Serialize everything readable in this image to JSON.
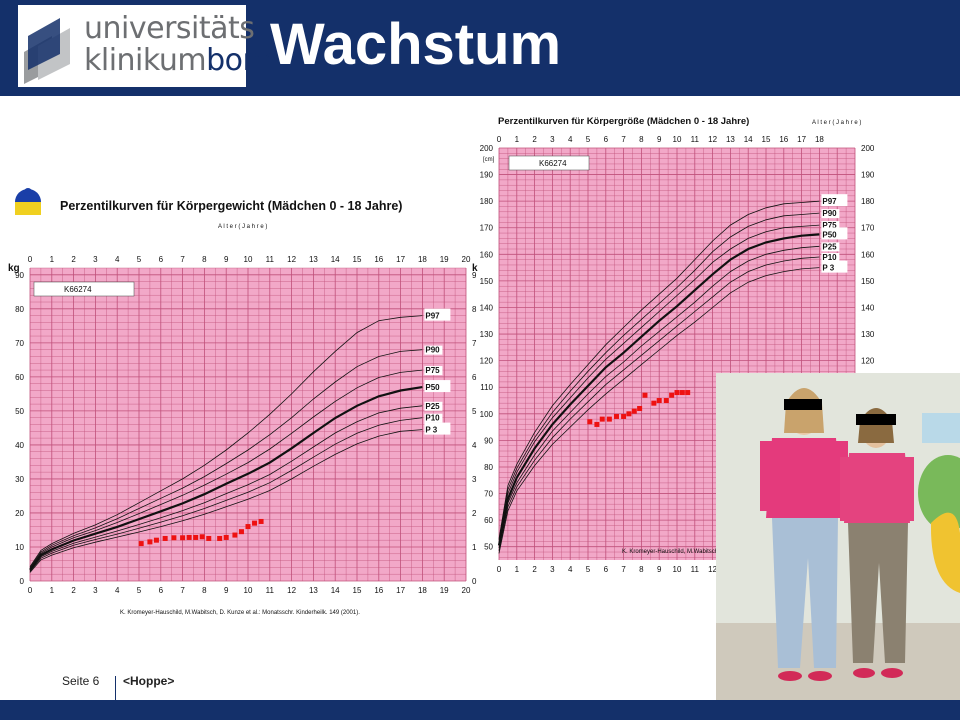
{
  "slide": {
    "title": "Wachstum",
    "page_label": "Seite 6",
    "author": "<Hoppe>",
    "logo": {
      "line1": "universitäts",
      "line2a": "klinikum",
      "line2b": "bonn"
    },
    "colors": {
      "brand": "#14306a",
      "grid_bg": "#f2a8c8",
      "grid_line": "#c0507a",
      "patient": "#ee1111"
    }
  },
  "chart_data": [
    {
      "type": "line",
      "title": "Perzentilkurven für Körpergewicht (Mädchen 0 - 18 Jahre)",
      "xlabel": "A l t e r  ( J a h r e )",
      "ylabel_left": "kg",
      "ylabel_right": "k",
      "patient_id": "K66274",
      "x_ticks": [
        "0",
        "1",
        "2",
        "3",
        "4",
        "5",
        "6",
        "7",
        "8",
        "9",
        "10",
        "11",
        "12",
        "13",
        "14",
        "15",
        "16",
        "17",
        "18",
        "19",
        "20"
      ],
      "y_ticks": [
        "0",
        "10",
        "20",
        "30",
        "40",
        "50",
        "60",
        "70",
        "80",
        "90"
      ],
      "y_ticks_right": [
        "0",
        "1",
        "2",
        "3",
        "4",
        "5",
        "6",
        "7",
        "8",
        "9"
      ],
      "xlim": [
        0,
        20
      ],
      "ylim": [
        0,
        92
      ],
      "citation": "K. Kromeyer-Hauschild, M.Wabitsch, D. Kunze et al.: Monatsschr. Kinderheilk. 149 (2001).",
      "series": [
        {
          "name": "P97",
          "bold": false,
          "x": [
            0,
            0.5,
            1,
            2,
            3,
            4,
            5,
            6,
            7,
            8,
            9,
            10,
            11,
            12,
            13,
            14,
            15,
            16,
            17,
            18
          ],
          "values": [
            4.2,
            9,
            11,
            14,
            16.5,
            19.5,
            23,
            26.5,
            30,
            34,
            38.5,
            43.5,
            49,
            55,
            61.5,
            67.5,
            73,
            76.5,
            77.5,
            78
          ]
        },
        {
          "name": "P90",
          "bold": false,
          "x": [
            0,
            0.5,
            1,
            2,
            3,
            4,
            5,
            6,
            7,
            8,
            9,
            10,
            11,
            12,
            13,
            14,
            15,
            16,
            17,
            18
          ],
          "values": [
            3.9,
            8.5,
            10.5,
            13.3,
            15.6,
            18.3,
            21.3,
            24.3,
            27.3,
            30.7,
            34.5,
            38.5,
            43,
            48,
            53.5,
            58.5,
            63,
            66,
            67.5,
            68
          ]
        },
        {
          "name": "P75",
          "bold": false,
          "x": [
            0,
            0.5,
            1,
            2,
            3,
            4,
            5,
            6,
            7,
            8,
            9,
            10,
            11,
            12,
            13,
            14,
            15,
            16,
            17,
            18
          ],
          "values": [
            3.6,
            8.1,
            10,
            12.7,
            14.8,
            17.2,
            19.8,
            22.5,
            25.2,
            28.2,
            31.4,
            34.8,
            38.8,
            43.4,
            48.2,
            52.8,
            56.8,
            59.8,
            61.3,
            62
          ]
        },
        {
          "name": "P50",
          "bold": true,
          "x": [
            0,
            0.5,
            1,
            2,
            3,
            4,
            5,
            6,
            7,
            8,
            9,
            10,
            11,
            12,
            13,
            14,
            15,
            16,
            17,
            18
          ],
          "values": [
            3.3,
            7.6,
            9.3,
            11.9,
            13.9,
            15.9,
            18.2,
            20.5,
            22.8,
            25.5,
            28.6,
            31.5,
            34.8,
            39,
            43.5,
            47.9,
            51.5,
            54.3,
            56,
            57
          ]
        },
        {
          "name": "P25",
          "bold": false,
          "x": [
            0,
            0.5,
            1,
            2,
            3,
            4,
            5,
            6,
            7,
            8,
            9,
            10,
            11,
            12,
            13,
            14,
            15,
            16,
            17,
            18
          ],
          "values": [
            3.0,
            7.1,
            8.7,
            11.1,
            12.9,
            14.7,
            16.6,
            18.6,
            20.7,
            23,
            25.7,
            28.3,
            31.3,
            35.2,
            39.4,
            43.5,
            46.8,
            49.4,
            50.8,
            51.5
          ]
        },
        {
          "name": "P10",
          "bold": false,
          "x": [
            0,
            0.5,
            1,
            2,
            3,
            4,
            5,
            6,
            7,
            8,
            9,
            10,
            11,
            12,
            13,
            14,
            15,
            16,
            17,
            18
          ],
          "values": [
            2.8,
            6.7,
            8.2,
            10.5,
            12.2,
            13.8,
            15.5,
            17.3,
            19.2,
            21.3,
            23.7,
            26.1,
            28.9,
            32.5,
            36.4,
            40.2,
            43.4,
            45.8,
            47.2,
            48
          ]
        },
        {
          "name": "P 3",
          "bold": false,
          "x": [
            0,
            0.5,
            1,
            2,
            3,
            4,
            5,
            6,
            7,
            8,
            9,
            10,
            11,
            12,
            13,
            14,
            15,
            16,
            17,
            18
          ],
          "values": [
            2.5,
            6.2,
            7.6,
            9.8,
            11.4,
            12.9,
            14.4,
            16,
            17.7,
            19.6,
            21.8,
            24,
            26.6,
            30,
            33.7,
            37.2,
            40.3,
            42.6,
            44,
            44.5
          ]
        }
      ],
      "patient": {
        "x": [
          5.1,
          5.5,
          5.8,
          6.2,
          6.6,
          7.0,
          7.3,
          7.6,
          7.9,
          8.2,
          8.7,
          9.0,
          9.4,
          9.7,
          10.0,
          10.3,
          10.6
        ],
        "values": [
          11,
          11.5,
          12,
          12.5,
          12.7,
          12.7,
          12.8,
          12.8,
          13,
          12.5,
          12.5,
          12.8,
          13.5,
          14.5,
          16,
          17,
          17.5
        ]
      }
    },
    {
      "type": "line",
      "title": "Perzentilkurven für Körpergröße (Mädchen 0 - 18 Jahre)",
      "xlabel": "A l t e r  ( J a h r e )",
      "unit_label": "[cm]",
      "patient_id": "K66274",
      "x_ticks": [
        "0",
        "1",
        "2",
        "3",
        "4",
        "5",
        "6",
        "7",
        "8",
        "9",
        "10",
        "11",
        "12",
        "13",
        "14",
        "15",
        "16",
        "17",
        "18"
      ],
      "y_ticks": [
        "50",
        "60",
        "70",
        "80",
        "90",
        "100",
        "110",
        "120",
        "130",
        "140",
        "150",
        "160",
        "170",
        "180",
        "190",
        "200"
      ],
      "xlim": [
        0,
        20
      ],
      "ylim": [
        45,
        200
      ],
      "citation": "K. Kromeyer-Hauschild, M.Wabitsch,",
      "series": [
        {
          "name": "P97",
          "bold": false,
          "x": [
            0,
            0.5,
            1,
            2,
            3,
            4,
            5,
            6,
            7,
            8,
            9,
            10,
            11,
            12,
            13,
            14,
            15,
            16,
            17,
            18
          ],
          "values": [
            53,
            73,
            81,
            93,
            103,
            111,
            118.5,
            126,
            132.5,
            139,
            145,
            151,
            158,
            165,
            171,
            175,
            177.5,
            179,
            179.5,
            180
          ]
        },
        {
          "name": "P90",
          "bold": false,
          "x": [
            0,
            0.5,
            1,
            2,
            3,
            4,
            5,
            6,
            7,
            8,
            9,
            10,
            11,
            12,
            13,
            14,
            15,
            16,
            17,
            18
          ],
          "values": [
            52.5,
            71.5,
            79.5,
            91,
            100.5,
            108.5,
            116,
            123,
            129.5,
            135.5,
            141.5,
            147.5,
            154,
            161,
            166.5,
            170.5,
            173,
            174.5,
            175,
            175.5
          ]
        },
        {
          "name": "P75",
          "bold": false,
          "x": [
            0,
            0.5,
            1,
            2,
            3,
            4,
            5,
            6,
            7,
            8,
            9,
            10,
            11,
            12,
            13,
            14,
            15,
            16,
            17,
            18
          ],
          "values": [
            51.5,
            70,
            78,
            89.5,
            98.5,
            106,
            113.5,
            120.5,
            126.5,
            132.5,
            138.5,
            144.5,
            150.5,
            157,
            162,
            166,
            168.5,
            170,
            170.5,
            171
          ]
        },
        {
          "name": "P50",
          "bold": true,
          "x": [
            0,
            0.5,
            1,
            2,
            3,
            4,
            5,
            6,
            7,
            8,
            9,
            10,
            11,
            12,
            13,
            14,
            15,
            16,
            17,
            18
          ],
          "values": [
            50.5,
            68,
            76,
            87,
            96,
            103.5,
            110.5,
            117.5,
            123,
            129,
            135,
            140.5,
            146.5,
            152.5,
            158,
            162,
            164.5,
            166,
            167,
            167.5
          ]
        },
        {
          "name": "P25",
          "bold": false,
          "x": [
            0,
            0.5,
            1,
            2,
            3,
            4,
            5,
            6,
            7,
            8,
            9,
            10,
            11,
            12,
            13,
            14,
            15,
            16,
            17,
            18
          ],
          "values": [
            49.5,
            66.5,
            74,
            84.5,
            93.5,
            100.5,
            107.5,
            114,
            119.5,
            125.5,
            131,
            136.5,
            142,
            148,
            153.5,
            157.5,
            160,
            161.5,
            162.5,
            163
          ]
        },
        {
          "name": "P10",
          "bold": false,
          "x": [
            0,
            0.5,
            1,
            2,
            3,
            4,
            5,
            6,
            7,
            8,
            9,
            10,
            11,
            12,
            13,
            14,
            15,
            16,
            17,
            18
          ],
          "values": [
            48.5,
            65,
            72.5,
            82.5,
            91,
            98,
            104.5,
            111,
            116.5,
            122,
            127.5,
            133,
            138.5,
            144,
            149.5,
            153.5,
            156,
            157.5,
            158.5,
            159
          ]
        },
        {
          "name": "P 3",
          "bold": false,
          "x": [
            0,
            0.5,
            1,
            2,
            3,
            4,
            5,
            6,
            7,
            8,
            9,
            10,
            11,
            12,
            13,
            14,
            15,
            16,
            17,
            18
          ],
          "values": [
            47.5,
            63.5,
            71,
            80.5,
            88.5,
            95,
            101.5,
            107.5,
            113,
            118.5,
            124,
            129.5,
            134.5,
            140,
            145.5,
            149.5,
            152,
            153.5,
            154.5,
            155
          ]
        }
      ],
      "patient": {
        "x": [
          5.1,
          5.5,
          5.8,
          6.2,
          6.6,
          7.0,
          7.3,
          7.6,
          7.9,
          8.2,
          8.7,
          9.0,
          9.4,
          9.7,
          10.0,
          10.3,
          10.6
        ],
        "values": [
          97,
          96,
          98,
          98,
          99,
          99,
          100,
          101,
          102,
          107,
          104,
          105,
          105,
          107,
          108,
          108,
          108
        ]
      }
    }
  ]
}
